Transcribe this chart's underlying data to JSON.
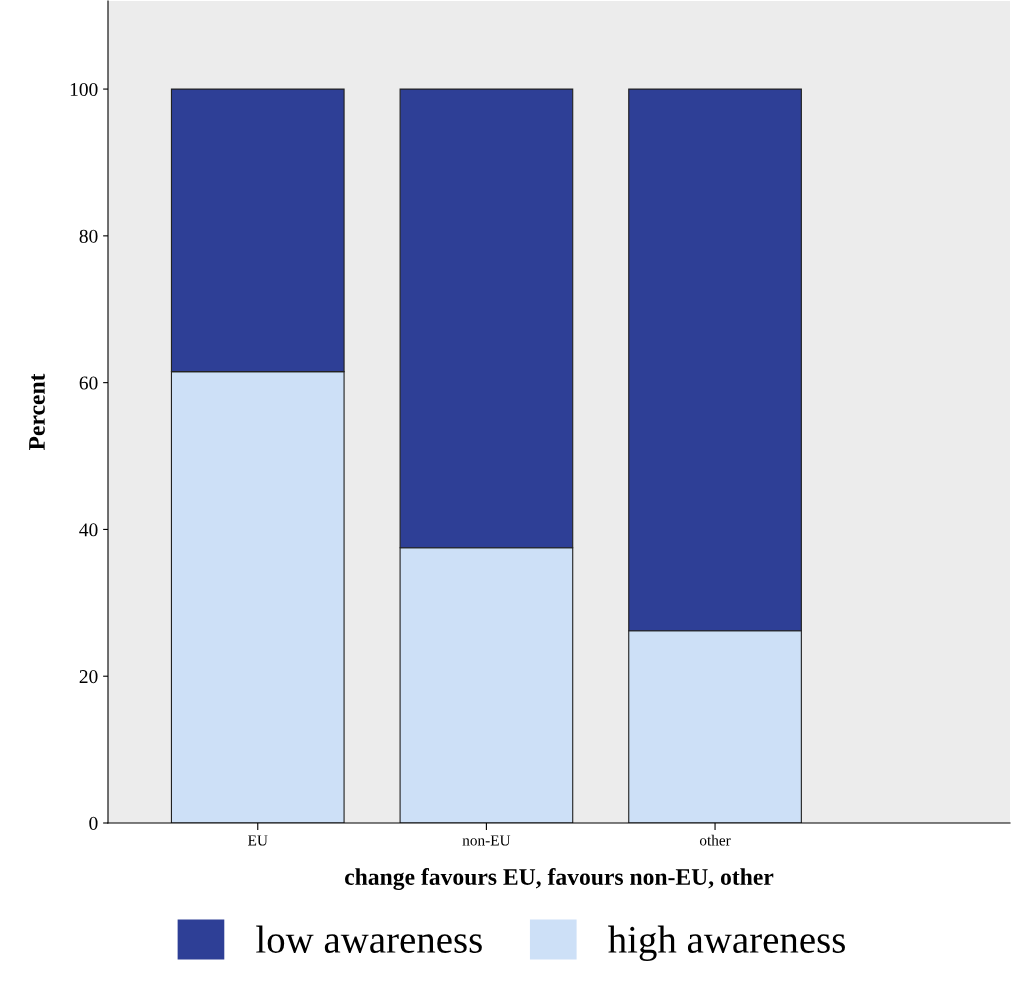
{
  "chart_data": {
    "type": "bar",
    "stacked": true,
    "xlabel": "change favours EU, favours non-EU, other",
    "ylabel": "Percent",
    "categories": [
      "EU",
      "non-EU",
      "other"
    ],
    "series": [
      {
        "name": "high awareness",
        "color": "#cde0f7",
        "values": [
          61.5,
          37.5,
          26.2
        ]
      },
      {
        "name": "low awareness",
        "color": "#2e3f96",
        "values": [
          38.5,
          62.5,
          73.8
        ]
      }
    ],
    "ylim": [
      0,
      112
    ],
    "yticks": [
      0,
      20,
      40,
      60,
      80,
      100
    ],
    "grid": false,
    "legend": "bottom"
  }
}
